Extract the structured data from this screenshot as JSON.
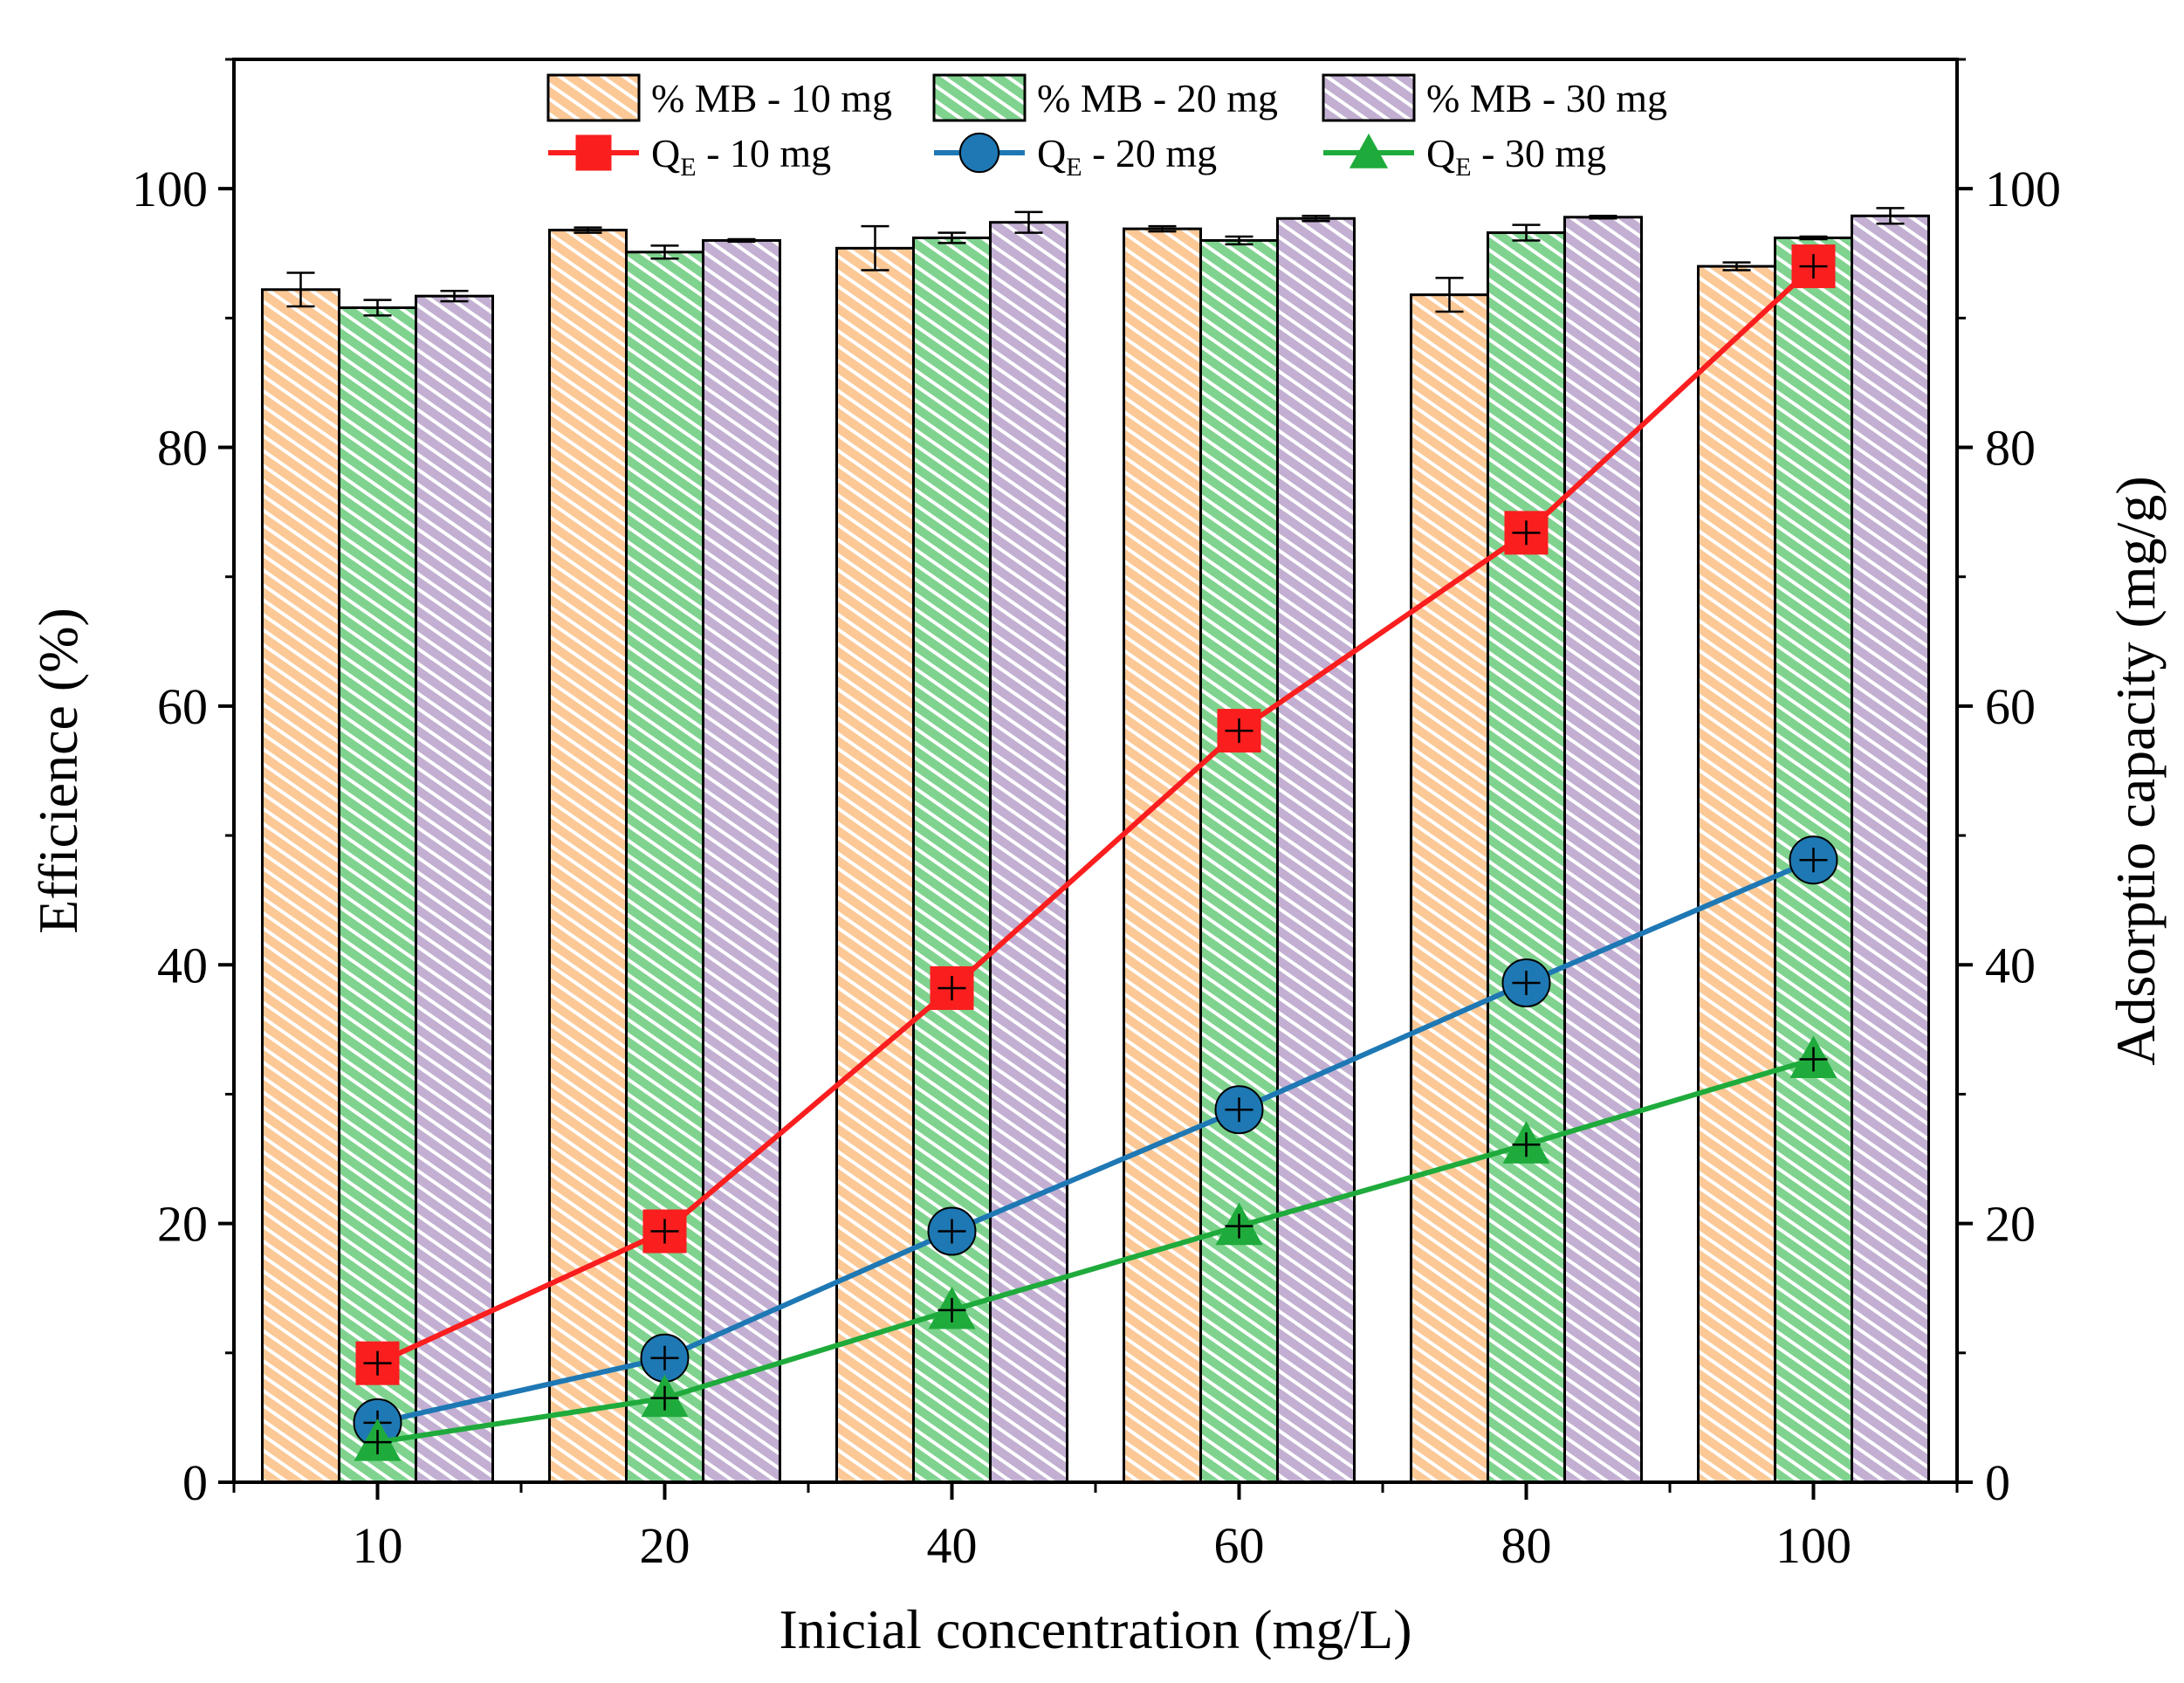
{
  "chart_data": {
    "type": "bar",
    "xlabel": "Inicial concentration (mg/L)",
    "ylabel": "Efficience (%)",
    "y2label": "Adsorptio capacity (mg/g)",
    "categories": [
      "10",
      "20",
      "40",
      "60",
      "80",
      "100"
    ],
    "ylim": [
      0,
      110
    ],
    "y2lim": [
      0,
      110
    ],
    "yticks": [
      "0",
      "20",
      "40",
      "60",
      "80",
      "100"
    ],
    "y2ticks": [
      "0",
      "20",
      "40",
      "60",
      "80",
      "100"
    ],
    "bar_series": [
      {
        "name": "% MB - 10 mg",
        "color": "#fbc896",
        "values": [
          92.2,
          96.8,
          95.4,
          96.9,
          91.8,
          94.0
        ],
        "errors": [
          1.3,
          0.2,
          1.7,
          0.2,
          1.3,
          0.3
        ]
      },
      {
        "name": "% MB - 20 mg",
        "color": "#7fd38f",
        "values": [
          90.8,
          95.1,
          96.2,
          96.0,
          96.6,
          96.2
        ],
        "errors": [
          0.6,
          0.5,
          0.4,
          0.3,
          0.6,
          0.1
        ]
      },
      {
        "name": "% MB - 30 mg",
        "color": "#c2afd2",
        "values": [
          91.7,
          96.0,
          97.4,
          97.7,
          97.8,
          97.9
        ],
        "errors": [
          0.4,
          0.1,
          0.8,
          0.2,
          0.1,
          0.6
        ]
      }
    ],
    "line_series": [
      {
        "name_main": "Q",
        "name_sub": "E",
        "name_rest": " - 10 mg",
        "color": "#fa1e1e",
        "marker": "square",
        "values": [
          9.2,
          19.4,
          38.2,
          58.1,
          73.4,
          94.0
        ]
      },
      {
        "name_main": "Q",
        "name_sub": "E",
        "name_rest": " - 20 mg",
        "color": "#1e78b4",
        "marker": "circle",
        "values": [
          4.6,
          9.6,
          19.4,
          28.8,
          38.6,
          48.1
        ]
      },
      {
        "name_main": "Q",
        "name_sub": "E",
        "name_rest": " - 30 mg",
        "color": "#1fab3c",
        "marker": "triangle",
        "values": [
          3.1,
          6.5,
          13.3,
          19.8,
          26.1,
          32.7
        ]
      }
    ]
  }
}
